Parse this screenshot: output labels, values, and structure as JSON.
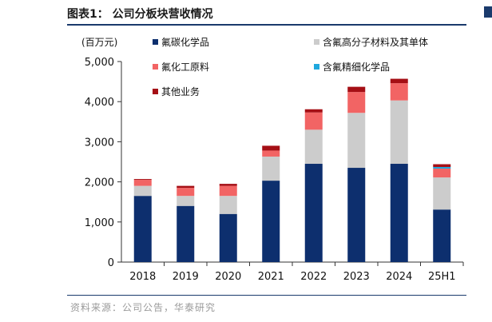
{
  "figure": {
    "title": "图表1：  公司分板块营收情况",
    "source": "资料来源：公司公告，华泰研究"
  },
  "chart_data": {
    "type": "bar",
    "stacked": true,
    "unit_label": "(百万元)",
    "categories": [
      "2018",
      "2019",
      "2020",
      "2021",
      "2022",
      "2023",
      "2024",
      "25H1"
    ],
    "series": [
      {
        "name": "氟碳化学品",
        "color": "#0d2f6e",
        "values": [
          1650,
          1400,
          1200,
          2030,
          2450,
          2350,
          2450,
          1310
        ]
      },
      {
        "name": "含氟高分子材料及其单体",
        "color": "#cccccc",
        "values": [
          250,
          250,
          450,
          600,
          850,
          1370,
          1580,
          800
        ]
      },
      {
        "name": "氟化工原料",
        "color": "#f26464",
        "values": [
          150,
          200,
          250,
          150,
          430,
          520,
          430,
          220
        ]
      },
      {
        "name": "含氟精细化学品",
        "color": "#1fa8de",
        "values": [
          0,
          0,
          0,
          0,
          0,
          0,
          0,
          40
        ]
      },
      {
        "name": "其他业务",
        "color": "#a50f15",
        "values": [
          20,
          50,
          50,
          120,
          80,
          130,
          110,
          70
        ]
      }
    ],
    "yticks": [
      "0",
      "1,000",
      "2,000",
      "3,000",
      "4,000",
      "5,000"
    ],
    "ylim": [
      0,
      5000
    ],
    "legend_position": "top",
    "grid": false
  }
}
